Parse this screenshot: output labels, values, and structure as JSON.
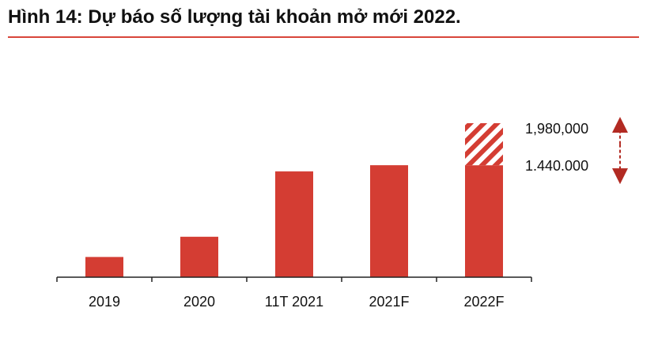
{
  "title": "Hình 14: Dự báo số lượng tài khoản mở mới 2022.",
  "colors": {
    "bar": "#d43d33",
    "accent": "#d8463a",
    "axis": "#222222",
    "arrow": "#b22a22"
  },
  "chart_data": {
    "type": "bar",
    "title": "Hình 14: Dự báo số lượng tài khoản mở mới 2022.",
    "categories": [
      "2019",
      "2020",
      "11T 2021",
      "2021F",
      "2022F"
    ],
    "values": [
      260000,
      520000,
      1360000,
      1440000,
      1440000
    ],
    "forecast_upper": {
      "category": "2022F",
      "value": 1980000
    },
    "annotations": {
      "upper": "1,980,000",
      "lower": "1.440.000"
    },
    "ylim": [
      0,
      1980000
    ],
    "grid": false,
    "legend": "none",
    "xlabel": "",
    "ylabel": ""
  }
}
